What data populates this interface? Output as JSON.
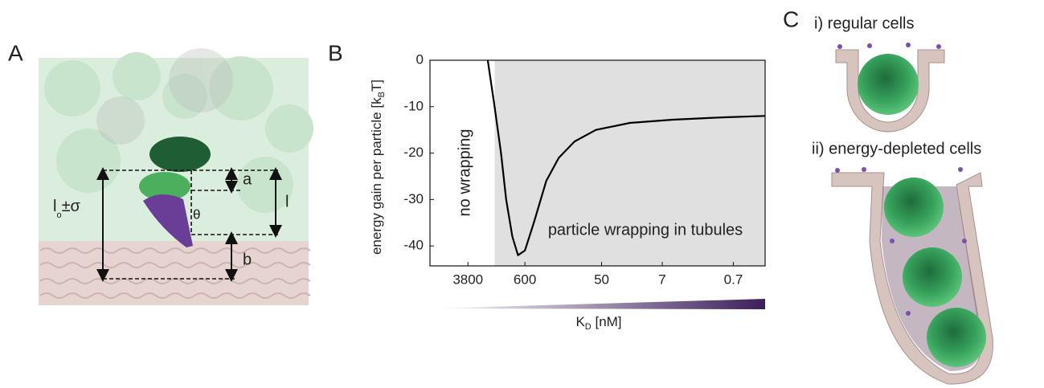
{
  "panel_a": {
    "letter": "A",
    "label_a": "a",
    "label_l": "l",
    "label_theta": "θ",
    "label_b": "b",
    "label_l0": [
      "l",
      "o",
      "±σ"
    ]
  },
  "panel_b": {
    "letter": "B"
  },
  "panel_c": {
    "letter": "C",
    "caption_1": "i) regular cells",
    "caption_2": "ii) energy-depleted cells"
  },
  "chart_data": {
    "type": "line",
    "ylabel": [
      "energy gain per particle [k",
      "B",
      "T]"
    ],
    "xlabel": [
      "K",
      "D",
      " [nM]"
    ],
    "x": [
      2000,
      1600,
      1300,
      1100,
      900,
      750,
      600,
      450,
      300,
      200,
      120,
      60,
      20,
      5,
      1,
      0.25
    ],
    "values": [
      0,
      -10,
      -20,
      -30,
      -38,
      -42,
      -41,
      -35,
      -26,
      -21,
      -17.5,
      -15,
      -13.5,
      -12.8,
      -12.3,
      -12
    ],
    "color": "#000000",
    "xscale": "log",
    "xlim": [
      13000,
      0.25
    ],
    "xticks": [
      3800,
      600,
      50,
      7,
      0.7
    ],
    "ylim": [
      -44.3,
      0
    ],
    "yticks": [
      0,
      -10,
      -20,
      -30,
      -40
    ],
    "shaded_from": 1600,
    "shade_color": "#e0e0e0",
    "annotations": [
      "no wrapping",
      "particle wrapping in tubules"
    ]
  }
}
